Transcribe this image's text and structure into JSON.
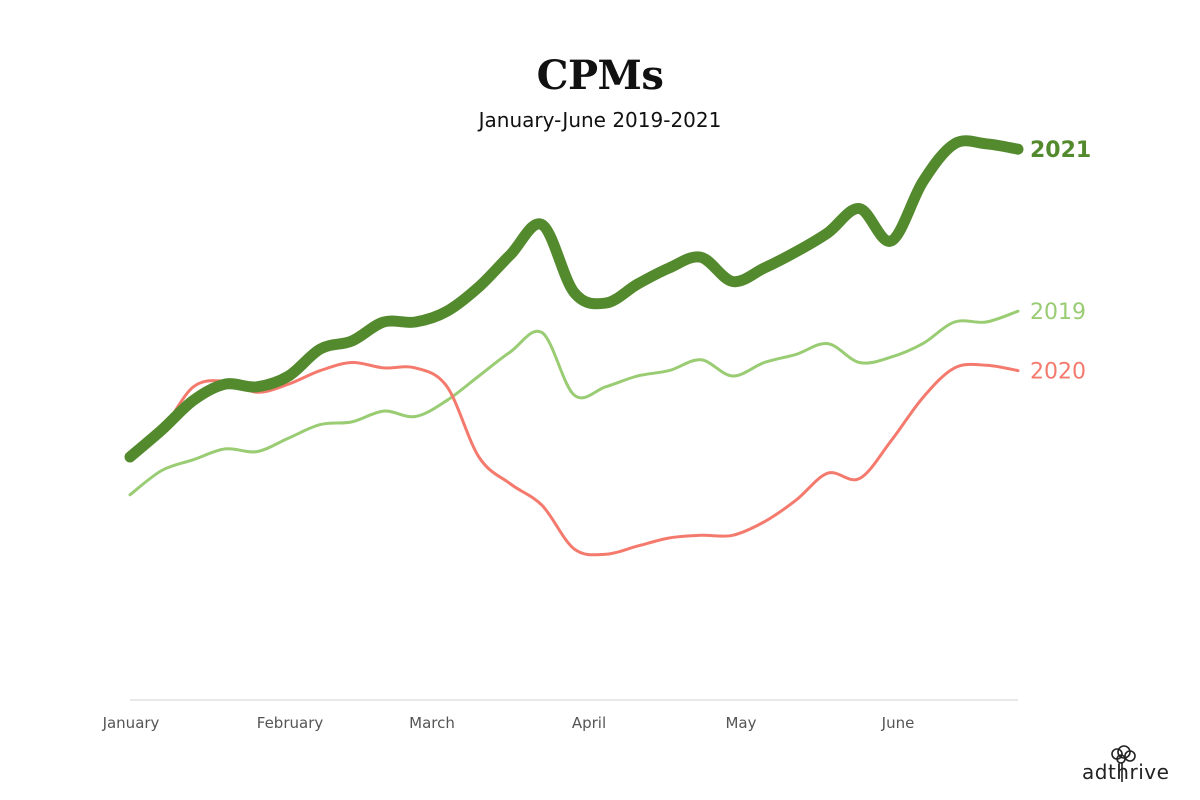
{
  "chart_data": {
    "type": "line",
    "title": "CPMs",
    "subtitle": "January-June 2019-2021",
    "xlabel": "",
    "ylabel": "",
    "x_ticks": [
      "January",
      "February",
      "March",
      "April",
      "May",
      "June"
    ],
    "x_range": [
      0,
      5.6
    ],
    "y_range": [
      0,
      100
    ],
    "grid": false,
    "y_axis_visible": false,
    "x": [
      0,
      0.2,
      0.4,
      0.6,
      0.8,
      1.0,
      1.2,
      1.4,
      1.6,
      1.8,
      2.0,
      2.2,
      2.4,
      2.6,
      2.8,
      3.0,
      3.2,
      3.4,
      3.6,
      3.8,
      4.0,
      4.2,
      4.4,
      4.6,
      4.8,
      5.0,
      5.2,
      5.4,
      5.6
    ],
    "series": [
      {
        "name": "2021",
        "color": "#548a2e",
        "width": "thick",
        "values": [
          45.0,
          50.0,
          55.5,
          58.5,
          58.0,
          60.0,
          65.0,
          66.5,
          70.0,
          70.0,
          72.0,
          76.5,
          82.5,
          88.0,
          75.5,
          73.5,
          77.0,
          80.0,
          82.0,
          77.5,
          80.0,
          83.0,
          86.5,
          91.0,
          85.0,
          96.0,
          103.0,
          103.0,
          102.0
        ]
      },
      {
        "name": "2019",
        "color": "#99cc73",
        "width": "thin",
        "values": [
          38.0,
          42.5,
          44.5,
          46.5,
          46.0,
          48.5,
          51.0,
          51.5,
          53.5,
          52.5,
          55.5,
          60.0,
          64.5,
          68.0,
          56.5,
          58.0,
          60.0,
          61.0,
          63.0,
          60.0,
          62.5,
          64.0,
          66.0,
          62.5,
          63.5,
          66.0,
          70.0,
          70.0,
          72.0
        ]
      },
      {
        "name": "2020",
        "color": "#f47a6e",
        "width": "thin",
        "values": [
          45.0,
          50.0,
          58.0,
          59.0,
          57.0,
          58.5,
          61.0,
          62.5,
          61.5,
          61.5,
          58.0,
          45.0,
          40.0,
          36.0,
          28.0,
          27.0,
          28.5,
          30.0,
          30.5,
          30.5,
          33.0,
          37.0,
          42.0,
          41.0,
          48.0,
          56.0,
          61.5,
          62.0,
          61.0
        ]
      }
    ]
  },
  "brand": {
    "logo_text": "adthrive"
  }
}
